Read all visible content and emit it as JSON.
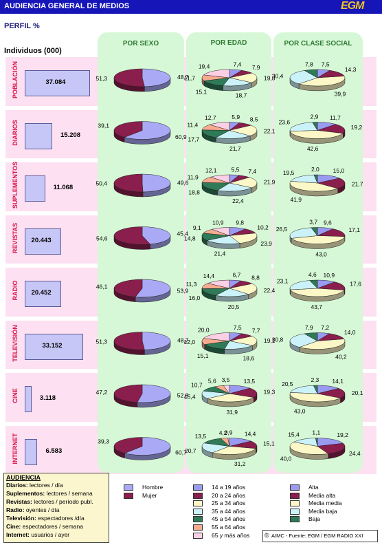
{
  "header": {
    "title": "AUDIENCIA GENERAL DE MEDIOS",
    "logo": "EGM"
  },
  "perfil_label": "PERFIL %",
  "individuos_label": "Individuos (000)",
  "columns": [
    "POR SEXO",
    "POR EDAD",
    "POR CLASE SOCIAL"
  ],
  "colors": {
    "header": "#1515b8",
    "row_band": "#fde0f1",
    "column_bg": "#d6f8d6",
    "sexo": [
      "#a9a9f6",
      "#8a1e4c"
    ],
    "edad": [
      "#9a9af2",
      "#8a1e4c",
      "#fbf7c6",
      "#cbf2f8",
      "#2f7a57",
      "#f5ab8f",
      "#fcd0e4"
    ],
    "clase": [
      "#9a9af2",
      "#8a1e4c",
      "#fbf7c6",
      "#cbf2f8",
      "#2f7a57"
    ]
  },
  "legend": {
    "sexo": [
      "Hombre",
      "Mujer"
    ],
    "edad": [
      "14 a 19 años",
      "20 a 24 años",
      "25 a 34 años",
      "35 a 44 años",
      "45 a 54 años",
      "55 a 64 años",
      "65 y más años"
    ],
    "clase": [
      "Alta",
      "Media alta",
      "Media media",
      "Media baja",
      "Baja"
    ]
  },
  "audiencia": {
    "title": "AUDIENCIA",
    "lines": [
      {
        "key": "Diarios:",
        "value": "lectores / día"
      },
      {
        "key": "Suplementos:",
        "value": "lectores / semana"
      },
      {
        "key": "Revistas:",
        "value": "lectores / período publ."
      },
      {
        "key": "Radio:",
        "value": "oyentes / día"
      },
      {
        "key": "Televisión:",
        "value": "espectadores /día"
      },
      {
        "key": "Cine:",
        "value": "espectadores / semana"
      },
      {
        "key": "Internet:",
        "value": "usuarios / ayer"
      }
    ]
  },
  "credit": {
    "symbol": "©",
    "text": "AIMC - Fuente: EGM / EGM RADIO XXI"
  },
  "chart_data": {
    "type": "pie",
    "title": "AUDIENCIA GENERAL DE MEDIOS",
    "subtitle": "PERFIL %",
    "rows": [
      {
        "medium": "POBLACIÓN",
        "individuals": "37.084",
        "value": 37084,
        "sexo": [
          48.7,
          51.3
        ],
        "edad": [
          7.4,
          7.9,
          19.8,
          18.7,
          15.1,
          11.7,
          19.4
        ],
        "clase": [
          7.5,
          14.3,
          39.9,
          30.4,
          7.8
        ]
      },
      {
        "medium": "DIARIOS",
        "individuals": "15.208",
        "value": 15208,
        "sexo": [
          60.9,
          39.1
        ],
        "edad": [
          5.9,
          8.5,
          22.1,
          21.7,
          17.7,
          11.4,
          12.7
        ],
        "clase": [
          11.7,
          19.2,
          42.6,
          23.6,
          2.9
        ]
      },
      {
        "medium": "SUPLEMENTOS",
        "individuals": "11.068",
        "value": 11068,
        "sexo": [
          49.6,
          50.4
        ],
        "edad": [
          5.5,
          7.4,
          21.9,
          22.4,
          18.8,
          11.9,
          12.1
        ],
        "clase": [
          15.0,
          21.7,
          41.9,
          19.5,
          2.0
        ]
      },
      {
        "medium": "REVISTAS",
        "individuals": "20.443",
        "value": 20443,
        "sexo": [
          45.4,
          54.6
        ],
        "edad": [
          9.8,
          10.2,
          23.9,
          21.4,
          14.8,
          9.1,
          10.9
        ],
        "clase": [
          9.6,
          17.1,
          43.0,
          26.5,
          3.7
        ]
      },
      {
        "medium": "RADIO",
        "individuals": "20.452",
        "value": 20452,
        "sexo": [
          53.9,
          46.1
        ],
        "edad": [
          6.7,
          8.8,
          22.4,
          20.5,
          16.0,
          11.3,
          14.4
        ],
        "clase": [
          10.9,
          17.6,
          43.7,
          23.1,
          4.6
        ]
      },
      {
        "medium": "TELEVISIÓN",
        "individuals": "33.152",
        "value": 33152,
        "sexo": [
          48.7,
          51.3
        ],
        "edad": [
          7.5,
          7.7,
          19.1,
          18.6,
          15.1,
          12.0,
          20.0
        ],
        "clase": [
          7.2,
          14.0,
          40.2,
          30.8,
          7.9
        ]
      },
      {
        "medium": "CINE",
        "individuals": "3.118",
        "value": 3118,
        "sexo": [
          52.8,
          47.2
        ],
        "edad": [
          13.5,
          19.3,
          31.9,
          15.4,
          10.7,
          5.6,
          3.5
        ],
        "clase": [
          14.1,
          20.1,
          43.0,
          20.5,
          2.3
        ]
      },
      {
        "medium": "INTERNET",
        "individuals": "6.583",
        "value": 6583,
        "sexo": [
          60.7,
          39.3
        ],
        "edad": [
          14.4,
          15.1,
          31.2,
          20.7,
          13.5,
          4.2,
          0.9
        ],
        "clase": [
          19.2,
          24.4,
          40.0,
          15.4,
          1.1
        ]
      }
    ]
  }
}
